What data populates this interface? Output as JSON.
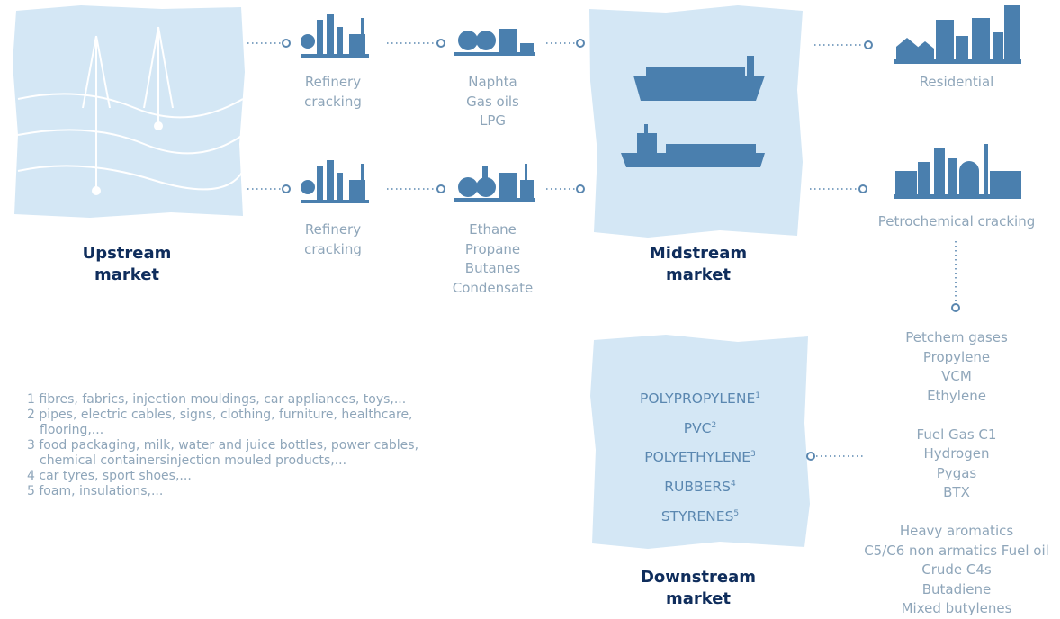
{
  "upstream": {
    "label": "Upstream market"
  },
  "rows": [
    {
      "process": "Refinery cracking",
      "products": [
        "Naphta",
        "Gas oils",
        "LPG"
      ]
    },
    {
      "process": "Refinery cracking",
      "products": [
        "Ethane",
        "Propane",
        "Butanes",
        "Condensate"
      ]
    }
  ],
  "midstream": {
    "label": "Midstream market"
  },
  "outlets": [
    "Residential",
    "Petrochemical cracking"
  ],
  "petrochem_products": [
    [
      "Petchem gases",
      "Propylene",
      "VCM",
      "Ethylene"
    ],
    [
      "Fuel Gas C1",
      "Hydrogen",
      "Pygas",
      "BTX"
    ],
    [
      "Heavy aromatics",
      "C5/C6 non armatics Fuel oil",
      "Crude C4s",
      "Butadiene",
      "Mixed butylenes"
    ]
  ],
  "downstream": {
    "label": "Downstream market",
    "products": [
      {
        "name": "POLYPROPYLENE",
        "note": "1"
      },
      {
        "name": "PVC",
        "note": "2"
      },
      {
        "name": "POLYETHYLENE",
        "note": "3"
      },
      {
        "name": "RUBBERS",
        "note": "4"
      },
      {
        "name": "STYRENES",
        "note": "5"
      }
    ]
  },
  "footnotes": [
    {
      "number": "1",
      "text": "fibres, fabrics, injection mouldings, car appliances, toys,..."
    },
    {
      "number": "2",
      "text": "pipes, electric cables, signs, clothing, furniture, healthcare, flooring,..."
    },
    {
      "number": "3",
      "text": "food packaging, milk, water and juice bottles, power cables, chemical containersinjection mouled products,..."
    },
    {
      "number": "4",
      "text": "car tyres, sport shoes,..."
    },
    {
      "number": "5",
      "text": "foam, insulations,..."
    }
  ]
}
